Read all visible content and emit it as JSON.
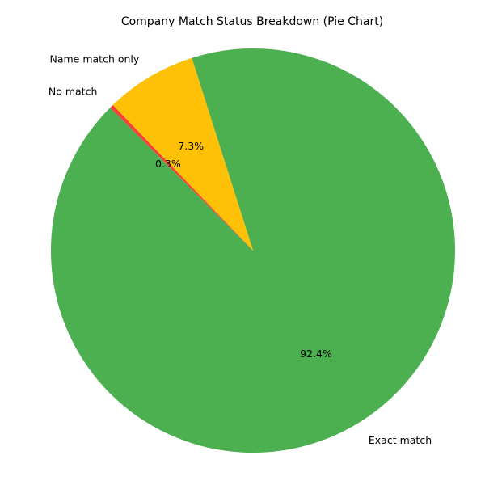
{
  "chart_data": {
    "type": "pie",
    "title": "Company Match Status Breakdown (Pie Chart)",
    "start_angle_deg": 135,
    "direction": "counterclockwise",
    "slices": [
      {
        "label": "Exact match",
        "value": 92.4,
        "pct_label": "92.4%",
        "color": "#4caf50"
      },
      {
        "label": "Name match only",
        "value": 7.3,
        "pct_label": "7.3%",
        "color": "#ffc107"
      },
      {
        "label": "No match",
        "value": 0.3,
        "pct_label": "0.3%",
        "color": "#f44336"
      }
    ]
  }
}
